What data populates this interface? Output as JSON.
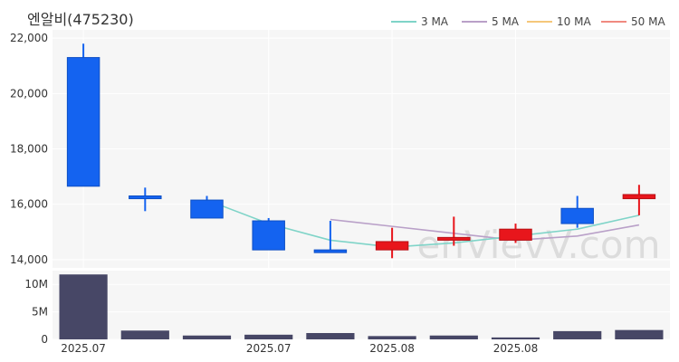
{
  "chart_data": {
    "type": "candlestick",
    "title": "엔알비(475230)",
    "watermark": "enVievV.com",
    "legend": [
      {
        "label": "3 MA",
        "color": "#7fd4c8"
      },
      {
        "label": "5 MA",
        "color": "#b9a0c8"
      },
      {
        "label": "10 MA",
        "color": "#f5c77a"
      },
      {
        "label": "50 MA",
        "color": "#f08a80"
      }
    ],
    "price_axis": {
      "ylim": [
        13700,
        22300
      ],
      "ticks": [
        14000,
        16000,
        18000,
        20000,
        22000
      ],
      "tick_labels": [
        "14,000",
        "16,000",
        "18,000",
        "20,000",
        "22,000"
      ]
    },
    "volume_axis": {
      "ylim": [
        0,
        12500000
      ],
      "ticks": [
        0,
        5000000,
        10000000
      ],
      "tick_labels": [
        "0",
        "5M",
        "10M"
      ]
    },
    "x_tick_labels": [
      {
        "index": 0,
        "label": "2025.07"
      },
      {
        "index": 3,
        "label": "2025.07"
      },
      {
        "index": 5,
        "label": "2025.08"
      },
      {
        "index": 7,
        "label": "2025.08"
      }
    ],
    "colors": {
      "up": "#e8161c",
      "down": "#1463f0",
      "volume": "#474766",
      "plot_bg": "#f6f6f6",
      "grid": "#ffffff"
    },
    "candles": [
      {
        "open": 21300,
        "close": 16650,
        "high": 21800,
        "low": 16650
      },
      {
        "open": 16300,
        "close": 16200,
        "high": 16600,
        "low": 15750
      },
      {
        "open": 16150,
        "close": 15500,
        "high": 16300,
        "low": 15500
      },
      {
        "open": 15400,
        "close": 14350,
        "high": 15500,
        "low": 14350
      },
      {
        "open": 14350,
        "close": 14300,
        "high": 15400,
        "low": 14300
      },
      {
        "open": 14350,
        "close": 14650,
        "high": 15150,
        "low": 14050
      },
      {
        "open": 14700,
        "close": 14800,
        "high": 15550,
        "low": 14500
      },
      {
        "open": 14700,
        "close": 15100,
        "high": 15300,
        "low": 14600
      },
      {
        "open": 15850,
        "close": 15300,
        "high": 16300,
        "low": 15150
      },
      {
        "open": 16200,
        "close": 16350,
        "high": 16700,
        "low": 15600
      }
    ],
    "volumes": [
      11800000,
      1600000,
      700000,
      850000,
      1150000,
      600000,
      700000,
      350000,
      1500000,
      1700000
    ],
    "ma3": [
      null,
      null,
      16150,
      15300,
      14700,
      14450,
      14600,
      14850,
      15100,
      15600
    ],
    "ma5": [
      null,
      null,
      null,
      null,
      15450,
      15200,
      14950,
      14700,
      14850,
      15250
    ]
  }
}
